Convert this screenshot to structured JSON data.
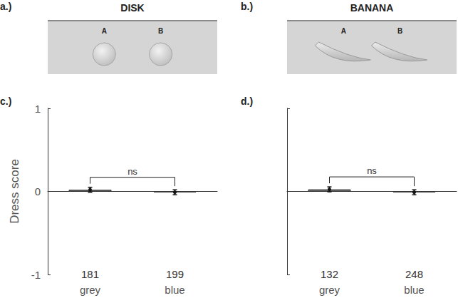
{
  "panels": [
    {
      "label": "a.)",
      "title": "DISK",
      "items": [
        "A",
        "B"
      ]
    },
    {
      "label": "b.)",
      "title": "BANANA",
      "items": [
        "A",
        "B"
      ]
    }
  ],
  "chart_data": [
    {
      "type": "bar",
      "panel_label": "c.)",
      "y_label": "Dress score",
      "categories": [
        "grey",
        "blue"
      ],
      "values": [
        0.02,
        -0.01
      ],
      "errors": [
        0.03,
        0.03
      ],
      "counts": [
        181,
        199
      ],
      "annotation": "ns",
      "colors": [
        "#8c8c8c",
        "#3a3a3a"
      ],
      "ylim": [
        -1,
        1
      ],
      "yticks": [
        -1,
        0,
        1
      ]
    },
    {
      "type": "bar",
      "panel_label": "d.)",
      "categories": [
        "grey",
        "blue"
      ],
      "values": [
        0.025,
        -0.01
      ],
      "errors": [
        0.03,
        0.03
      ],
      "counts": [
        132,
        248
      ],
      "annotation": "ns",
      "colors": [
        "#8c8c8c",
        "#3a3a3a"
      ],
      "ylim": [
        -1,
        1
      ],
      "yticks": [
        -1,
        0,
        1
      ],
      "tick_labels": "x"
    }
  ]
}
